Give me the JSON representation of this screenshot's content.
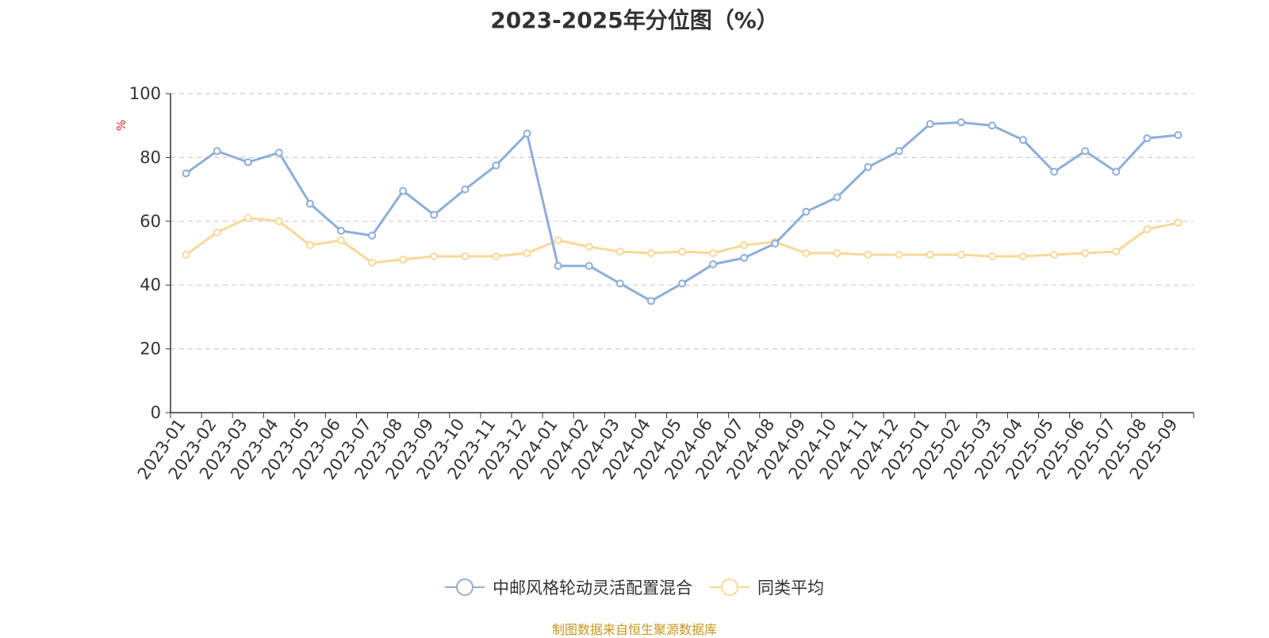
{
  "chart_data": {
    "type": "line",
    "title": "2023-2025年分位图（%）",
    "ylabel": "%",
    "xlabel": "",
    "ylim": [
      0,
      100
    ],
    "yticks": [
      0,
      20,
      40,
      60,
      80,
      100
    ],
    "grid": true,
    "legend_position": "bottom",
    "categories": [
      "2023-01",
      "2023-02",
      "2023-03",
      "2023-04",
      "2023-05",
      "2023-06",
      "2023-07",
      "2023-08",
      "2023-09",
      "2023-10",
      "2023-11",
      "2023-12",
      "2024-01",
      "2024-02",
      "2024-03",
      "2024-04",
      "2024-05",
      "2024-06",
      "2024-07",
      "2024-08",
      "2024-09",
      "2024-10",
      "2024-11",
      "2024-12",
      "2025-01",
      "2025-02",
      "2025-03",
      "2025-04",
      "2025-05",
      "2025-06",
      "2025-07",
      "2025-08",
      "2025-09"
    ],
    "series": [
      {
        "name": "中邮风格轮动灵活配置混合",
        "color": "#8eaed8",
        "values": [
          75,
          82,
          78.5,
          81.5,
          65.5,
          57,
          55.5,
          69.5,
          62,
          70,
          77.5,
          87.5,
          46,
          46,
          40.5,
          35,
          40.5,
          46.5,
          48.5,
          53,
          63,
          67.5,
          77,
          82,
          90.5,
          91,
          90,
          85.5,
          75.5,
          82,
          75.5,
          86,
          87
        ]
      },
      {
        "name": "同类平均",
        "color": "#f8d898",
        "values": [
          49.5,
          56.5,
          61,
          60,
          52.5,
          54,
          47,
          48,
          49,
          49,
          49,
          50,
          54,
          52,
          50.5,
          50,
          50.5,
          50,
          52.5,
          53.5,
          50,
          50,
          49.5,
          49.5,
          49.5,
          49.5,
          49,
          49,
          49.5,
          50,
          50.5,
          57.5,
          59.5
        ]
      }
    ]
  },
  "source_note": "制图数据来自恒生聚源数据库"
}
